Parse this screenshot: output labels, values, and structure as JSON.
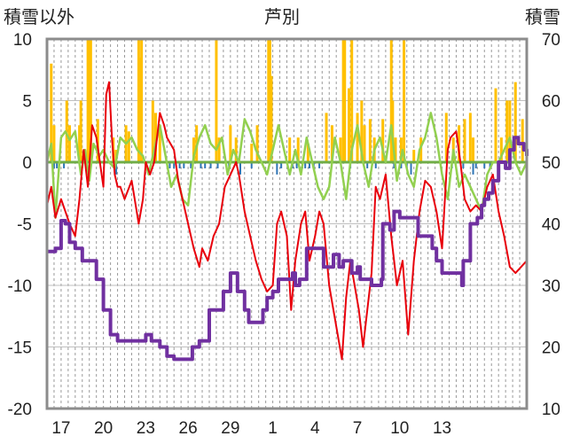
{
  "chart_data": {
    "type": "line",
    "title": "芦別",
    "left_axis_label": "積雪以外",
    "right_axis_label": "積雪",
    "left_ylim": [
      -20,
      10
    ],
    "left_ticks": [
      "10",
      "5",
      "0",
      "-5",
      "-10",
      "-15",
      "-20"
    ],
    "right_ylim": [
      10,
      70
    ],
    "right_ticks": [
      "70",
      "60",
      "50",
      "40",
      "30",
      "20",
      "10"
    ],
    "x_ticks": [
      "17",
      "20",
      "23",
      "26",
      "29",
      "1",
      "4",
      "7",
      "10",
      "13"
    ],
    "grid": "vertical dashed every 12h",
    "colors": {
      "temperature": "#e8000b",
      "wind": "#92d050",
      "precip_pos": "#ffc000",
      "precip_neg": "#2e75b6",
      "snow": "#7030a0",
      "zero_line": "#70ad47"
    },
    "snow_depth_right_axis": [
      [
        16,
        35.5
      ],
      [
        16.6,
        36
      ],
      [
        17,
        40.5
      ],
      [
        17.3,
        40
      ],
      [
        17.6,
        37
      ],
      [
        18,
        36
      ],
      [
        18.5,
        34
      ],
      [
        19.5,
        31
      ],
      [
        20,
        26
      ],
      [
        20.5,
        22
      ],
      [
        21,
        21
      ],
      [
        22.6,
        21
      ],
      [
        23,
        22
      ],
      [
        23.4,
        21
      ],
      [
        24,
        20
      ],
      [
        24.5,
        18.5
      ],
      [
        25,
        18
      ],
      [
        26,
        18
      ],
      [
        26.3,
        20
      ],
      [
        26.8,
        21
      ],
      [
        27.5,
        26
      ],
      [
        28,
        26
      ],
      [
        28.5,
        29
      ],
      [
        29,
        32
      ],
      [
        29.5,
        29
      ],
      [
        30,
        26
      ],
      [
        30.3,
        24
      ],
      [
        31,
        24
      ],
      [
        31.3,
        26
      ],
      [
        31.6,
        28
      ],
      [
        32,
        29
      ],
      [
        32.3,
        29
      ],
      [
        32.4,
        31
      ],
      [
        33,
        31
      ],
      [
        33.4,
        32
      ],
      [
        33.6,
        30
      ],
      [
        33.9,
        31
      ],
      [
        34.4,
        36
      ],
      [
        35,
        36
      ],
      [
        35.6,
        33
      ],
      [
        36,
        33
      ],
      [
        36.3,
        35
      ],
      [
        36.7,
        33
      ],
      [
        37,
        34
      ],
      [
        37.6,
        32
      ],
      [
        38,
        33
      ],
      [
        38.2,
        31
      ],
      [
        38.9,
        31
      ],
      [
        39,
        30
      ],
      [
        39.7,
        31
      ],
      [
        39.8,
        40
      ],
      [
        40.3,
        39
      ],
      [
        40.6,
        42
      ],
      [
        41,
        41
      ],
      [
        41.5,
        41
      ],
      [
        42,
        41
      ],
      [
        42.3,
        38
      ],
      [
        42.6,
        38
      ],
      [
        43,
        38
      ],
      [
        43.3,
        36
      ],
      [
        43.6,
        34
      ],
      [
        44,
        32
      ],
      [
        45.4,
        30
      ],
      [
        45.5,
        34
      ],
      [
        46,
        40
      ],
      [
        46.5,
        41
      ],
      [
        46.8,
        43
      ],
      [
        47,
        44
      ],
      [
        47.3,
        45
      ],
      [
        47.6,
        47
      ],
      [
        48,
        50
      ],
      [
        48.3,
        50
      ],
      [
        48.5,
        49
      ],
      [
        48.8,
        52
      ],
      [
        49.1,
        54
      ],
      [
        49.4,
        53
      ],
      [
        49.8,
        52
      ],
      [
        50,
        51
      ]
    ],
    "snow_gaps_x": [
      [
        18.8,
        19.2
      ],
      [
        39.0,
        39.3
      ],
      [
        44.2,
        45.0
      ]
    ],
    "temperature_left_axis": [
      [
        16,
        -3.5
      ],
      [
        16.3,
        -2
      ],
      [
        16.6,
        -4.5
      ],
      [
        17,
        -3
      ],
      [
        17.3,
        -4
      ],
      [
        17.6,
        -5
      ],
      [
        18,
        -6
      ],
      [
        18.3,
        -3
      ],
      [
        18.6,
        1
      ],
      [
        18.9,
        -2
      ],
      [
        19.2,
        3
      ],
      [
        19.5,
        2
      ],
      [
        20,
        -2
      ],
      [
        20.2,
        5.5
      ],
      [
        20.4,
        6.5
      ],
      [
        20.6,
        2
      ],
      [
        20.8,
        -1
      ],
      [
        21,
        -2
      ],
      [
        21.2,
        -2
      ],
      [
        21.5,
        -3
      ],
      [
        22,
        -1.5
      ],
      [
        22.5,
        -5
      ],
      [
        22.8,
        -3
      ],
      [
        23,
        0
      ],
      [
        23.3,
        -1
      ],
      [
        23.6,
        0
      ],
      [
        24,
        4
      ],
      [
        24.3,
        3
      ],
      [
        24.5,
        2
      ],
      [
        25,
        1
      ],
      [
        25.3,
        -1.5
      ],
      [
        25.6,
        -3
      ],
      [
        26,
        -5
      ],
      [
        26.4,
        -7
      ],
      [
        26.8,
        -8.5
      ],
      [
        27,
        -7
      ],
      [
        27.4,
        -8
      ],
      [
        27.8,
        -6
      ],
      [
        28.2,
        -5
      ],
      [
        28.6,
        -2
      ],
      [
        29,
        -1
      ],
      [
        29.4,
        0
      ],
      [
        29.6,
        -1
      ],
      [
        30,
        -4
      ],
      [
        30.4,
        -6
      ],
      [
        30.8,
        -8
      ],
      [
        31.2,
        -9.5
      ],
      [
        31.6,
        -10.5
      ],
      [
        32,
        -10
      ],
      [
        32.3,
        -5
      ],
      [
        32.6,
        -4
      ],
      [
        33,
        -6
      ],
      [
        33.3,
        -12
      ],
      [
        33.6,
        -8
      ],
      [
        34,
        -5
      ],
      [
        34.3,
        -4
      ],
      [
        34.6,
        -8
      ],
      [
        35,
        -6
      ],
      [
        35.3,
        -4
      ],
      [
        35.6,
        -5
      ],
      [
        36,
        -10
      ],
      [
        36.3,
        -12
      ],
      [
        36.6,
        -14
      ],
      [
        36.9,
        -16
      ],
      [
        37.2,
        -11
      ],
      [
        37.5,
        -8
      ],
      [
        37.8,
        -10
      ],
      [
        38.1,
        -12
      ],
      [
        38.4,
        -15
      ],
      [
        38.7,
        -12
      ],
      [
        39,
        -9
      ],
      [
        39.3,
        -2
      ],
      [
        39.6,
        -3
      ],
      [
        40,
        -1
      ],
      [
        40.4,
        -6
      ],
      [
        40.8,
        -10
      ],
      [
        41.2,
        -8
      ],
      [
        41.6,
        -14
      ],
      [
        42,
        -8
      ],
      [
        42.4,
        -4
      ],
      [
        42.8,
        -1.5
      ],
      [
        43.2,
        -2
      ],
      [
        43.6,
        -4
      ],
      [
        44,
        -7
      ],
      [
        44.4,
        1
      ],
      [
        44.6,
        2
      ],
      [
        45,
        2.5
      ],
      [
        45.3,
        0
      ],
      [
        45.6,
        -3
      ],
      [
        46,
        -4
      ],
      [
        46.4,
        -3.5
      ],
      [
        46.8,
        -4
      ],
      [
        47.2,
        -2
      ],
      [
        47.6,
        -1
      ],
      [
        48,
        -4
      ],
      [
        48.4,
        -6
      ],
      [
        48.8,
        -8.5
      ],
      [
        49.2,
        -9
      ],
      [
        49.6,
        -8.5
      ],
      [
        50,
        -8
      ]
    ],
    "wind_left_axis": [
      [
        16,
        0
      ],
      [
        16.3,
        1.5
      ],
      [
        16.6,
        -4.5
      ],
      [
        17,
        2
      ],
      [
        17.3,
        2.5
      ],
      [
        17.6,
        1.8
      ],
      [
        18,
        2.5
      ],
      [
        18.4,
        -1
      ],
      [
        18.7,
        1
      ],
      [
        19,
        -1.5
      ],
      [
        19.3,
        1.5
      ],
      [
        19.7,
        0.5
      ],
      [
        20,
        1
      ],
      [
        20.4,
        0
      ],
      [
        20.8,
        -0.5
      ],
      [
        21.2,
        2
      ],
      [
        21.6,
        1.5
      ],
      [
        22,
        2
      ],
      [
        22.4,
        1
      ],
      [
        22.8,
        0.5
      ],
      [
        23.2,
        -1
      ],
      [
        23.6,
        1
      ],
      [
        24,
        3
      ],
      [
        24.4,
        0.5
      ],
      [
        24.8,
        -2
      ],
      [
        25.2,
        -1
      ],
      [
        25.6,
        -3
      ],
      [
        26,
        -3.5
      ],
      [
        26.4,
        0.5
      ],
      [
        26.8,
        2
      ],
      [
        27.2,
        3
      ],
      [
        27.6,
        1.5
      ],
      [
        28,
        1
      ],
      [
        28.4,
        2
      ],
      [
        28.8,
        -1
      ],
      [
        29.2,
        1
      ],
      [
        29.6,
        0
      ],
      [
        30,
        3.5
      ],
      [
        30.4,
        2.5
      ],
      [
        30.8,
        1
      ],
      [
        31.2,
        0
      ],
      [
        31.6,
        -1
      ],
      [
        32,
        1
      ],
      [
        32.4,
        3
      ],
      [
        32.8,
        1
      ],
      [
        33.2,
        -1
      ],
      [
        33.6,
        1
      ],
      [
        34,
        -1
      ],
      [
        34.4,
        2
      ],
      [
        34.8,
        0
      ],
      [
        35.2,
        -2
      ],
      [
        35.6,
        -3
      ],
      [
        36,
        -2
      ],
      [
        36.4,
        2
      ],
      [
        36.8,
        0
      ],
      [
        37.2,
        -3
      ],
      [
        37.6,
        1
      ],
      [
        38,
        3
      ],
      [
        38.4,
        0
      ],
      [
        38.8,
        -2
      ],
      [
        39.2,
        1
      ],
      [
        39.6,
        2
      ],
      [
        40,
        0
      ],
      [
        40.4,
        3
      ],
      [
        40.8,
        -1.5
      ],
      [
        41.2,
        1
      ],
      [
        41.6,
        -1
      ],
      [
        42,
        -2
      ],
      [
        42.4,
        1
      ],
      [
        42.8,
        2
      ],
      [
        43.2,
        4
      ],
      [
        43.6,
        2
      ],
      [
        44,
        -1
      ],
      [
        44.4,
        -3
      ],
      [
        44.8,
        1
      ],
      [
        45.2,
        -2
      ],
      [
        45.6,
        -1
      ],
      [
        46,
        -2
      ],
      [
        46.4,
        -3
      ],
      [
        46.8,
        -4
      ],
      [
        47.2,
        -1
      ],
      [
        47.6,
        0
      ],
      [
        48,
        0
      ],
      [
        48.4,
        1
      ],
      [
        48.8,
        2
      ],
      [
        49.2,
        0
      ],
      [
        49.6,
        -1
      ],
      [
        50,
        0
      ]
    ],
    "precip_pos_left_axis": [
      [
        16.3,
        8
      ],
      [
        16.5,
        3
      ],
      [
        17.4,
        5
      ],
      [
        17.6,
        3
      ],
      [
        18.3,
        3
      ],
      [
        18.4,
        5
      ],
      [
        18.9,
        10
      ],
      [
        19,
        10
      ],
      [
        19.1,
        10
      ],
      [
        19.6,
        3.5
      ],
      [
        20.7,
        2
      ],
      [
        20.9,
        1
      ],
      [
        21.6,
        3
      ],
      [
        21.8,
        2.5
      ],
      [
        22.5,
        10
      ],
      [
        22.6,
        8.5
      ],
      [
        22.7,
        10
      ],
      [
        23.5,
        5
      ],
      [
        23.7,
        4
      ],
      [
        24,
        3
      ],
      [
        26.4,
        2
      ],
      [
        26.6,
        3
      ],
      [
        28,
        10
      ],
      [
        28.2,
        2
      ],
      [
        29,
        3
      ],
      [
        29.4,
        2
      ],
      [
        30.5,
        1.5
      ],
      [
        30.9,
        3
      ],
      [
        31.7,
        10
      ],
      [
        31.8,
        10
      ],
      [
        31.9,
        7
      ],
      [
        33.2,
        2
      ],
      [
        33.8,
        2
      ],
      [
        34.5,
        1.5
      ],
      [
        35.8,
        4
      ],
      [
        36.2,
        3
      ],
      [
        36.8,
        2
      ],
      [
        37,
        10
      ],
      [
        37.1,
        10
      ],
      [
        37.4,
        6
      ],
      [
        37.6,
        10
      ],
      [
        38,
        4
      ],
      [
        38.3,
        5
      ],
      [
        38.5,
        3
      ],
      [
        38.9,
        3.5
      ],
      [
        39.2,
        2
      ],
      [
        39.8,
        3.5
      ],
      [
        40.4,
        10
      ],
      [
        40.5,
        5
      ],
      [
        40.7,
        2
      ],
      [
        41.1,
        2
      ],
      [
        41.3,
        10
      ],
      [
        42,
        1
      ],
      [
        42.5,
        2
      ],
      [
        44.3,
        4
      ],
      [
        44.8,
        2
      ],
      [
        45.2,
        3
      ],
      [
        45.6,
        3.5
      ],
      [
        46,
        4
      ],
      [
        46.2,
        2
      ],
      [
        47.8,
        6
      ],
      [
        48.2,
        2
      ],
      [
        48.6,
        5
      ],
      [
        48.8,
        5
      ],
      [
        49.2,
        6.5
      ],
      [
        49.7,
        3.5
      ]
    ],
    "precip_neg_left_axis": [
      [
        16.5,
        -0.5
      ],
      [
        16.7,
        -0.5
      ],
      [
        17.2,
        -0.5
      ],
      [
        20.9,
        -1
      ],
      [
        24.7,
        -0.5
      ],
      [
        25,
        -0.5
      ],
      [
        25.4,
        -0.5
      ],
      [
        25.7,
        -0.5
      ],
      [
        26.2,
        -0.5
      ],
      [
        26.9,
        -0.5
      ],
      [
        27.2,
        -0.5
      ],
      [
        27.6,
        -0.5
      ],
      [
        28.1,
        -0.5
      ],
      [
        28.9,
        -0.5
      ],
      [
        29.7,
        -1
      ],
      [
        30.5,
        -0.5
      ],
      [
        32.3,
        -1
      ],
      [
        32.6,
        -0.5
      ],
      [
        33.4,
        -0.5
      ],
      [
        33.7,
        -0.5
      ],
      [
        34.1,
        -0.5
      ],
      [
        34.3,
        -0.5
      ],
      [
        34.6,
        -0.5
      ],
      [
        34.9,
        -0.5
      ],
      [
        35.3,
        -0.5
      ],
      [
        37.5,
        -0.5
      ],
      [
        38.7,
        -0.5
      ],
      [
        39.3,
        -0.5
      ],
      [
        40.6,
        -0.5
      ],
      [
        41.1,
        -0.5
      ],
      [
        41.5,
        -0.5
      ],
      [
        41.8,
        -1
      ],
      [
        44.7,
        -0.5
      ],
      [
        45.5,
        -0.5
      ],
      [
        46.2,
        -1
      ],
      [
        46.4,
        -0.5
      ],
      [
        47,
        -0.5
      ],
      [
        47.4,
        -0.5
      ]
    ]
  }
}
